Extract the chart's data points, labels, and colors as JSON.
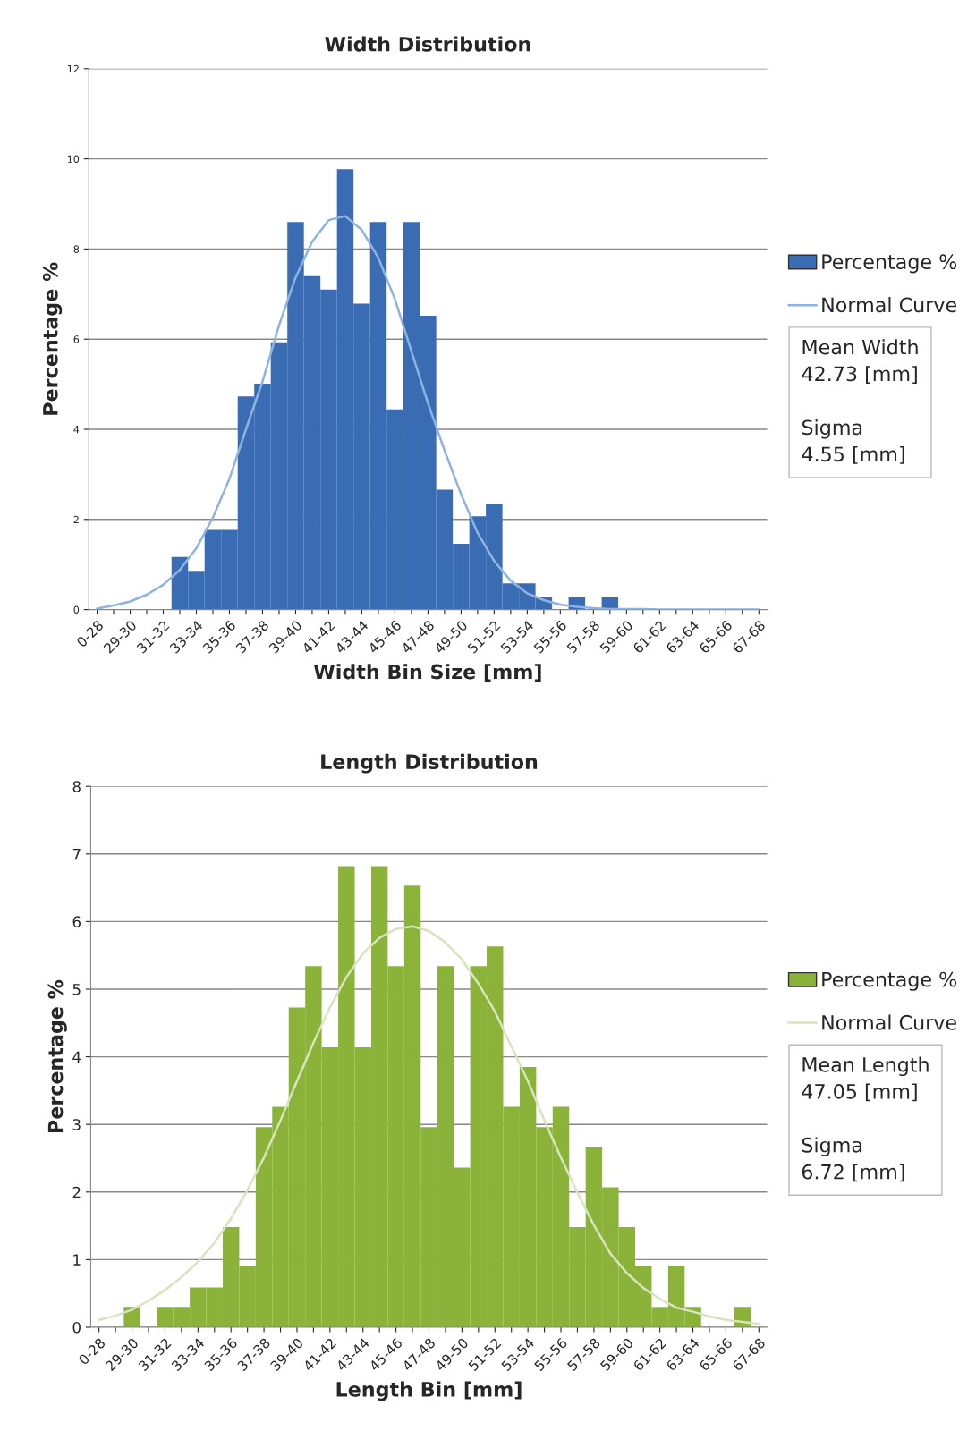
{
  "chart_data": [
    {
      "type": "bar",
      "title": "Width Distribution",
      "xlabel": "Width Bin Size [mm]",
      "ylabel": "Percentage %",
      "categories": [
        "0-28",
        null,
        "29-30",
        null,
        "31-32",
        null,
        "33-34",
        null,
        "35-36",
        null,
        "37-38",
        null,
        "39-40",
        null,
        "41-42",
        null,
        "43-44",
        null,
        "45-46",
        null,
        "47-48",
        null,
        "49-50",
        null,
        "51-52",
        null,
        "53-54",
        null,
        "55-56",
        null,
        "57-58",
        null,
        "59-60",
        null,
        "61-62",
        null,
        "63-64",
        null,
        "65-66",
        null,
        "67-68"
      ],
      "series": [
        {
          "name": "Percentage %",
          "color": "#3a6cb4",
          "values": [
            0,
            0,
            0,
            0,
            0,
            1.17,
            0.86,
            1.77,
            1.77,
            4.73,
            5.01,
            5.93,
            8.6,
            7.4,
            7.1,
            9.77,
            6.79,
            8.6,
            4.44,
            8.6,
            6.52,
            2.66,
            1.46,
            2.07,
            2.35,
            0.58,
            0.58,
            0.28,
            0,
            0.28,
            0,
            0.28,
            0,
            0,
            0,
            0,
            0,
            0,
            0,
            0,
            0
          ]
        },
        {
          "name": "Normal Curve",
          "type": "line",
          "color": "#8db3e2",
          "values": [
            0.02,
            0.09,
            0.18,
            0.33,
            0.55,
            0.88,
            1.36,
            2.04,
            2.9,
            4.0,
            5.06,
            6.31,
            7.37,
            8.16,
            8.64,
            8.73,
            8.42,
            7.8,
            6.89,
            5.73,
            4.58,
            3.53,
            2.56,
            1.7,
            1.08,
            0.64,
            0.36,
            0.21,
            0.11,
            0.06,
            0.03,
            0.01,
            0.01,
            0.01,
            0,
            0,
            0,
            0,
            0,
            0,
            0
          ]
        }
      ],
      "ylim": [
        0,
        12
      ],
      "yticks": [
        0,
        2,
        4,
        6,
        8,
        10,
        12
      ],
      "grid": "y",
      "legend": "right",
      "annotations": [
        "Mean Width\n42.73 [mm]\n\nSigma\n4.55 [mm]"
      ]
    },
    {
      "type": "bar",
      "title": "Length Distribution",
      "xlabel": "Length Bin [mm]",
      "ylabel": "Percentage %",
      "categories": [
        "0-28",
        null,
        "29-30",
        null,
        "31-32",
        null,
        "33-34",
        null,
        "35-36",
        null,
        "37-38",
        null,
        "39-40",
        null,
        "41-42",
        null,
        "43-44",
        null,
        "45-46",
        null,
        "47-48",
        null,
        "49-50",
        null,
        "51-52",
        null,
        "53-54",
        null,
        "55-56",
        null,
        "57-58",
        null,
        "59-60",
        null,
        "61-62",
        null,
        "63-64",
        null,
        "65-66",
        null,
        "67-68"
      ],
      "series": [
        {
          "name": "Percentage %",
          "color": "#8bb33a",
          "values": [
            0,
            0,
            0.3,
            0,
            0.3,
            0.3,
            0.59,
            0.59,
            1.48,
            0.9,
            2.96,
            3.26,
            4.73,
            5.34,
            4.14,
            6.82,
            4.14,
            6.82,
            5.34,
            6.53,
            2.96,
            5.34,
            2.36,
            5.34,
            5.63,
            3.26,
            3.85,
            2.96,
            3.26,
            1.48,
            2.67,
            2.07,
            1.48,
            0.9,
            0.3,
            0.9,
            0.3,
            0,
            0,
            0.3,
            0
          ]
        },
        {
          "name": "Normal Curve",
          "type": "line",
          "color": "#d7e4bd",
          "values": [
            0.11,
            0.17,
            0.26,
            0.39,
            0.55,
            0.74,
            0.97,
            1.25,
            1.61,
            2.03,
            2.51,
            3.06,
            3.64,
            4.21,
            4.73,
            5.18,
            5.53,
            5.76,
            5.89,
            5.93,
            5.86,
            5.69,
            5.44,
            5.08,
            4.67,
            4.15,
            3.64,
            3.06,
            2.51,
            1.99,
            1.51,
            1.09,
            0.8,
            0.58,
            0.42,
            0.29,
            0.23,
            0.16,
            0.11,
            0.08,
            0.05
          ]
        }
      ],
      "ylim": [
        0,
        8
      ],
      "yticks": [
        0,
        1,
        2,
        3,
        4,
        5,
        6,
        7,
        8
      ],
      "grid": "y",
      "legend": "right",
      "annotations": [
        "Mean Length\n47.05 [mm]\n\nSigma\n6.72 [mm]"
      ]
    }
  ]
}
